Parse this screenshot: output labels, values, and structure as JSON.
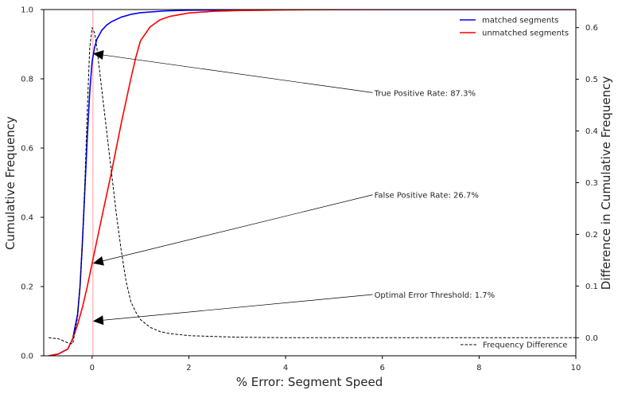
{
  "chart_data": {
    "type": "line",
    "xlabel": "% Error: Segment Speed",
    "ylabel": "Cumulative Frequency",
    "y2label": "Difference in Cumulative Frequency",
    "xlim": [
      -1,
      10
    ],
    "ylim": [
      0,
      1.0
    ],
    "y2lim": [
      -0.035,
      0.635
    ],
    "x_ticks": [
      0,
      2,
      4,
      6,
      8,
      10
    ],
    "y_ticks": [
      0.0,
      0.2,
      0.4,
      0.6,
      0.8,
      1.0
    ],
    "y_tick_labels": [
      "0.0",
      "0.2",
      "0.4",
      "0.6",
      "0.8",
      "1.0"
    ],
    "y2_ticks": [
      0.0,
      0.1,
      0.2,
      0.3,
      0.4,
      0.5,
      0.6
    ],
    "y2_tick_labels": [
      "0.0",
      "0.1",
      "0.2",
      "0.3",
      "0.4",
      "0.5",
      "0.6"
    ],
    "grid": false,
    "legend_position": "top-right",
    "legend2_position": "bottom-right",
    "threshold_x": 0.017,
    "series": [
      {
        "name": "matched segments",
        "axis": "left",
        "color": "#0000ff",
        "style": "solid",
        "x": [
          -0.9,
          -0.7,
          -0.5,
          -0.4,
          -0.3,
          -0.25,
          -0.2,
          -0.15,
          -0.1,
          -0.05,
          0.0,
          0.05,
          0.1,
          0.2,
          0.3,
          0.4,
          0.6,
          0.8,
          1.0,
          1.5,
          2.0,
          3.0,
          4.0,
          6.0,
          10.0
        ],
        "y": [
          0.0,
          0.005,
          0.02,
          0.05,
          0.12,
          0.2,
          0.33,
          0.48,
          0.63,
          0.76,
          0.85,
          0.89,
          0.915,
          0.94,
          0.955,
          0.965,
          0.978,
          0.986,
          0.991,
          0.996,
          0.998,
          0.999,
          1.0,
          1.0,
          1.0
        ]
      },
      {
        "name": "unmatched segments",
        "axis": "left",
        "color": "#ff0000",
        "style": "solid",
        "x": [
          -0.9,
          -0.7,
          -0.5,
          -0.4,
          -0.3,
          -0.2,
          -0.1,
          0.0,
          0.2,
          0.4,
          0.6,
          0.8,
          0.9,
          1.0,
          1.2,
          1.4,
          1.6,
          2.0,
          2.5,
          3.0,
          4.0,
          6.0,
          10.0
        ],
        "y": [
          0.0,
          0.005,
          0.02,
          0.05,
          0.09,
          0.14,
          0.2,
          0.267,
          0.4,
          0.53,
          0.67,
          0.8,
          0.86,
          0.91,
          0.95,
          0.97,
          0.98,
          0.99,
          0.995,
          0.997,
          0.999,
          1.0,
          1.0
        ]
      },
      {
        "name": "Frequency Difference",
        "axis": "right",
        "color": "#000000",
        "style": "dashed",
        "x": [
          -0.9,
          -0.7,
          -0.5,
          -0.4,
          -0.3,
          -0.25,
          -0.2,
          -0.15,
          -0.1,
          -0.05,
          0.0,
          0.05,
          0.1,
          0.2,
          0.3,
          0.4,
          0.5,
          0.6,
          0.7,
          0.8,
          0.9,
          1.0,
          1.2,
          1.4,
          1.6,
          2.0,
          3.0,
          4.0,
          10.0
        ],
        "y": [
          0.0,
          -0.002,
          -0.01,
          -0.012,
          0.04,
          0.1,
          0.18,
          0.3,
          0.44,
          0.56,
          0.6,
          0.59,
          0.56,
          0.48,
          0.4,
          0.32,
          0.24,
          0.17,
          0.11,
          0.07,
          0.05,
          0.035,
          0.02,
          0.012,
          0.008,
          0.004,
          0.001,
          0.0,
          0.0
        ]
      }
    ],
    "annotations": [
      {
        "text": "True Positive Rate: 87.3%",
        "x": 5.8,
        "y": 0.76,
        "arrow_x": 0.017,
        "arrow_y": 0.873
      },
      {
        "text": "False Positive Rate: 26.7%",
        "x": 5.8,
        "y": 0.465,
        "arrow_x": 0.017,
        "arrow_y": 0.267
      },
      {
        "text": "Optimal Error Threshold: 1.7%",
        "x": 5.8,
        "y": 0.177,
        "arrow_x": 0.017,
        "arrow_y": 0.1
      }
    ],
    "colors": {
      "threshold_line": "#ff9999",
      "annotation": "#000000"
    }
  }
}
